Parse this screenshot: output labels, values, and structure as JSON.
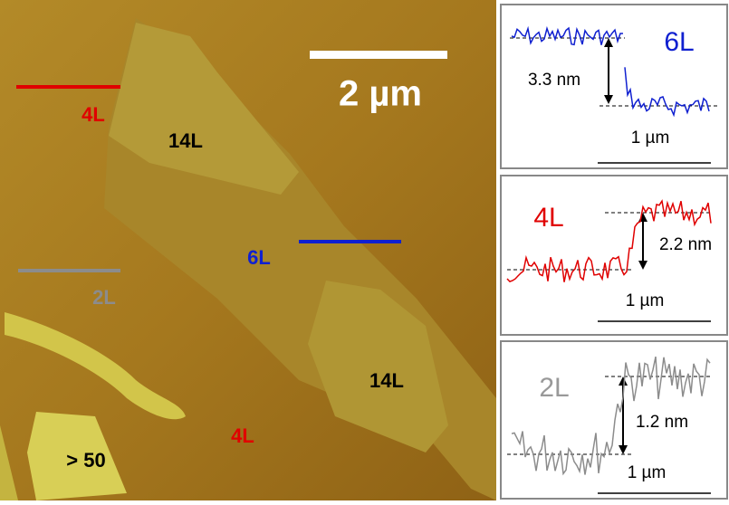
{
  "image": {
    "scale_bar": "2 µm",
    "labels": [
      "4L",
      "14L",
      "6L",
      "2L",
      "14L",
      "4L",
      "> 50"
    ]
  },
  "profiles": [
    {
      "layer": "6L",
      "height": "3.3 nm",
      "scale": "1 µm"
    },
    {
      "layer": "4L",
      "height": "2.2 nm",
      "scale": "1 µm"
    },
    {
      "layer": "2L",
      "height": "1.2 nm",
      "scale": "1 µm"
    }
  ]
}
